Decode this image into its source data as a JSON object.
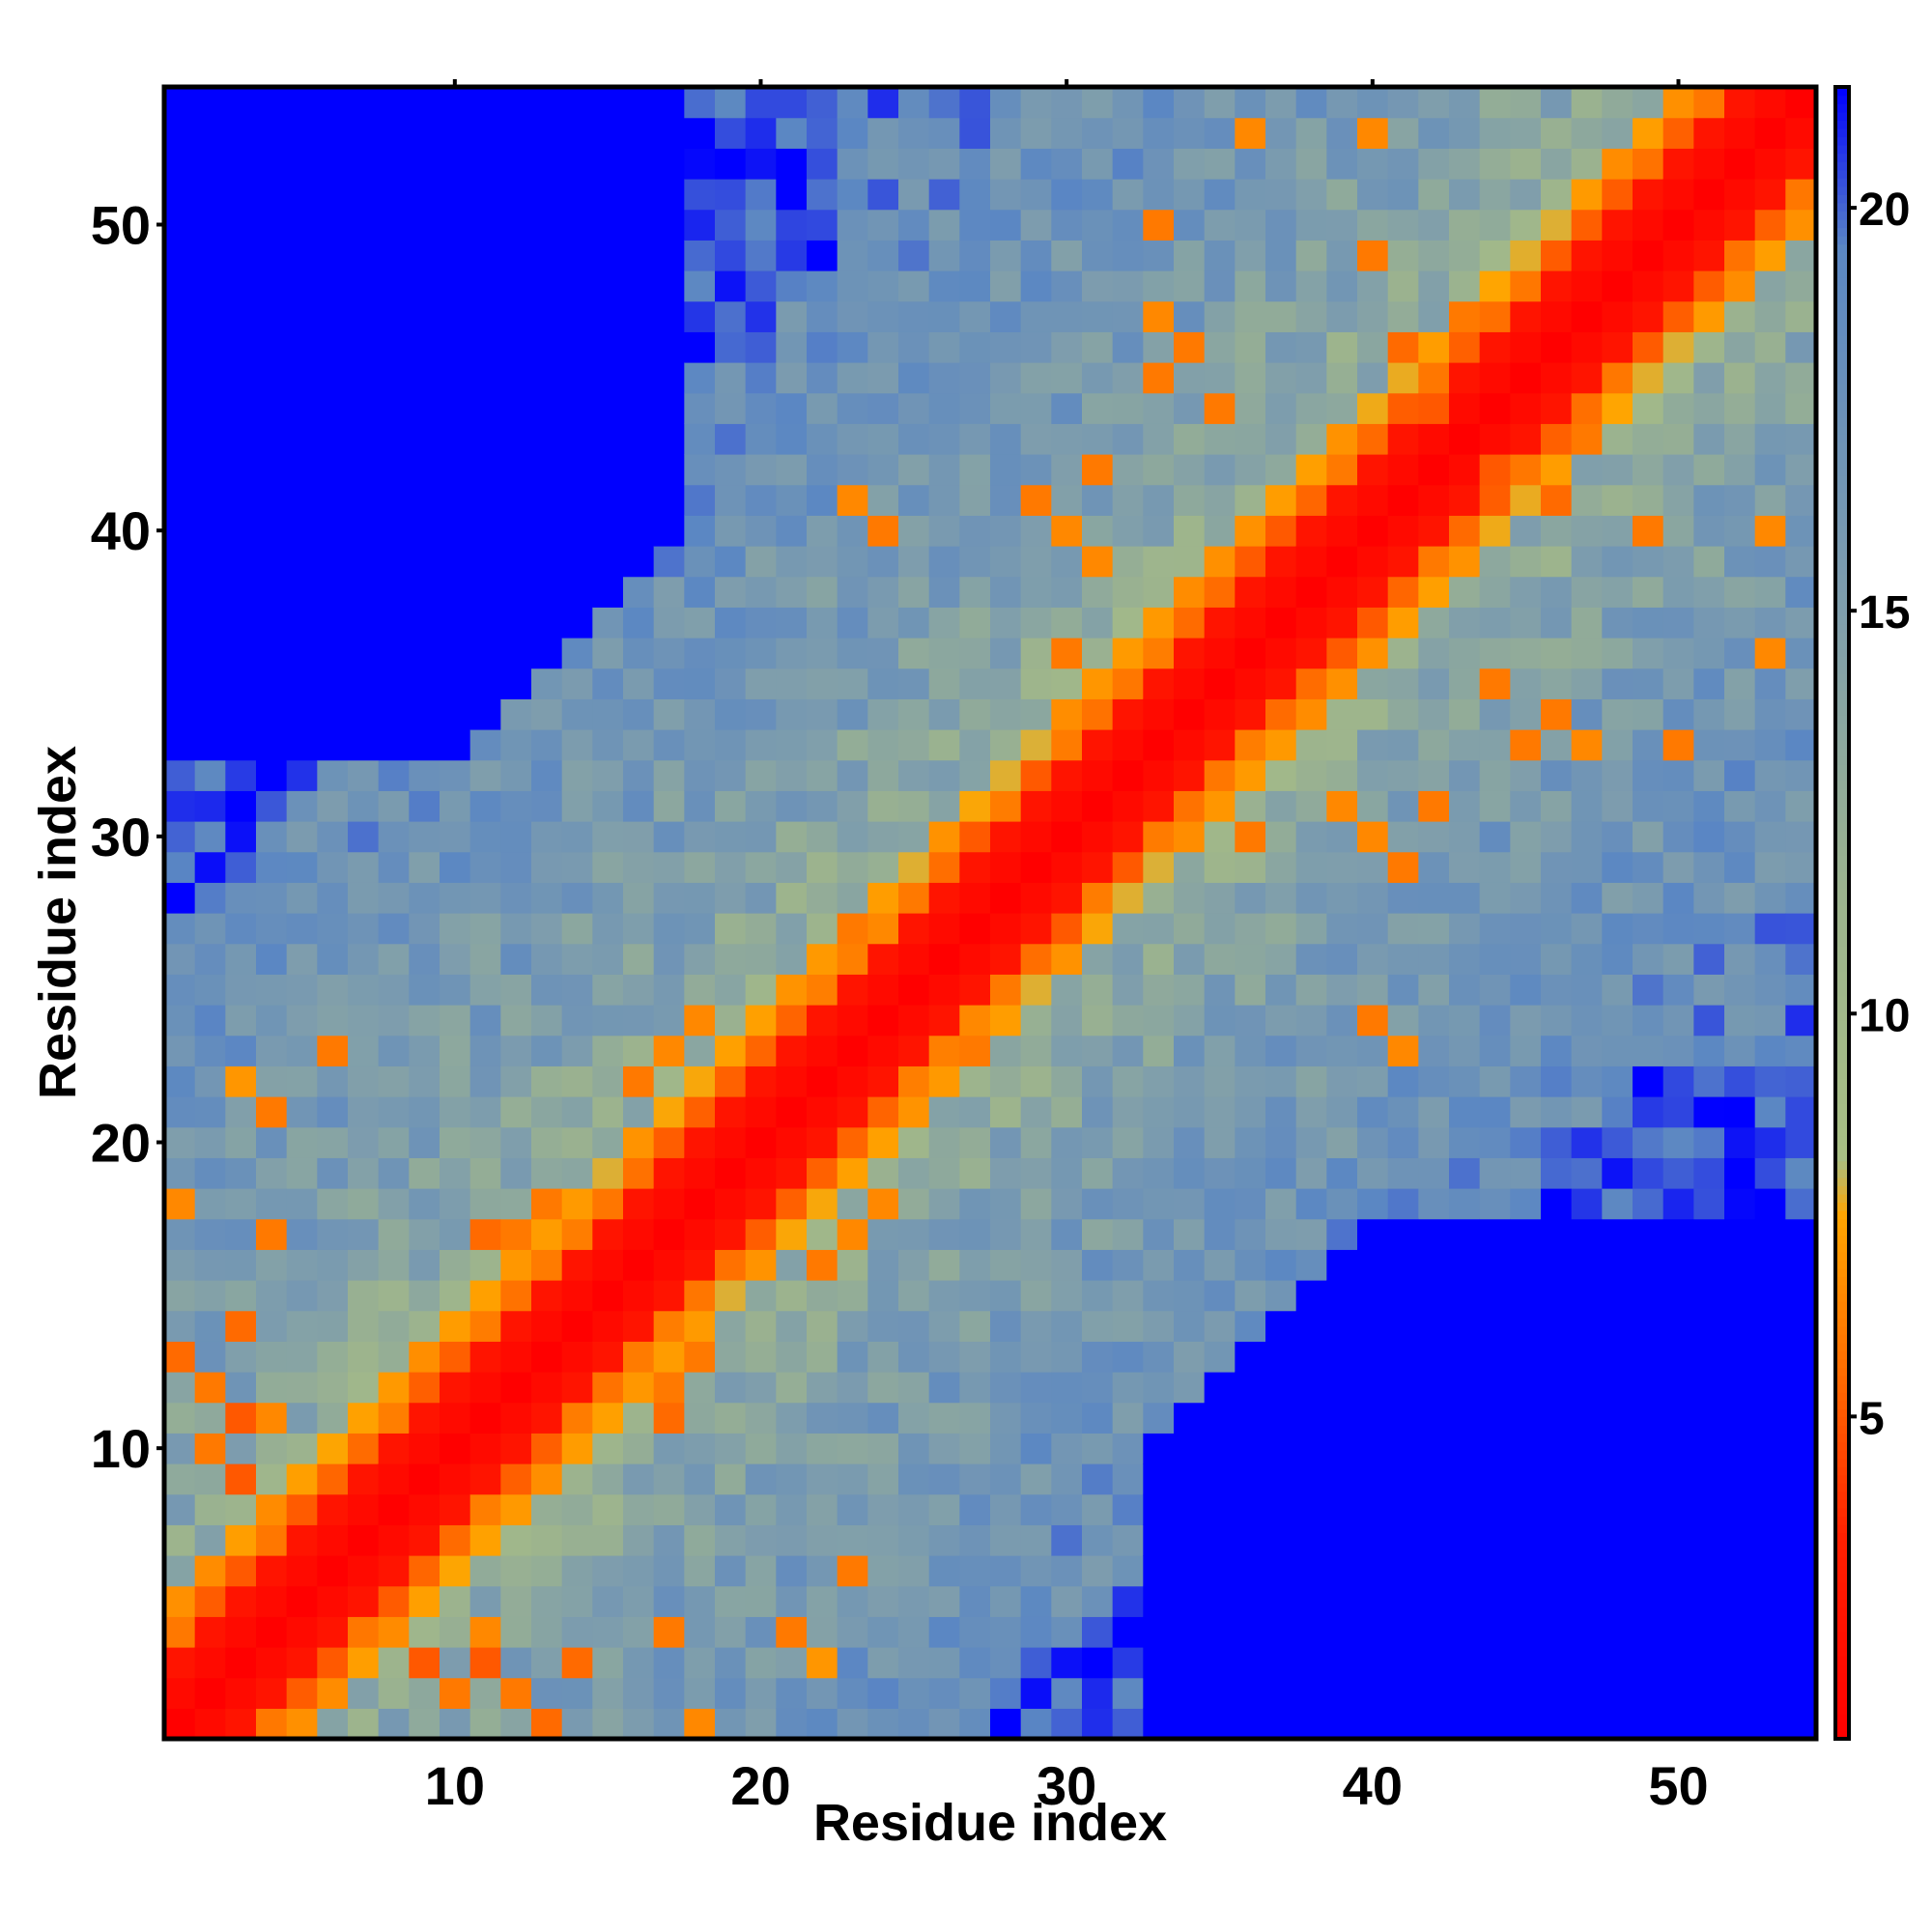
{
  "chart_data": {
    "type": "heatmap",
    "title": "",
    "xlabel": "Residue index",
    "ylabel": "Residue index",
    "n": 54,
    "xlim": [
      1,
      54
    ],
    "ylim": [
      1,
      54
    ],
    "x_ticks": [
      10,
      20,
      30,
      40,
      50
    ],
    "y_ticks": [
      10,
      20,
      30,
      40,
      50
    ],
    "x_tick_labels": [
      "10",
      "20",
      "30",
      "40",
      "50"
    ],
    "y_tick_labels": [
      "10",
      "20",
      "30",
      "40",
      "50"
    ],
    "colorbar": {
      "range": [
        1,
        21.5
      ],
      "ticks": [
        5,
        10,
        15,
        20
      ],
      "tick_labels": [
        "5",
        "10",
        "15",
        "20"
      ],
      "stops": [
        {
          "value": 1,
          "color": "#ff0000"
        },
        {
          "value": 3.5,
          "color": "#ff2000"
        },
        {
          "value": 5.5,
          "color": "#ff6a00"
        },
        {
          "value": 7.5,
          "color": "#ffa500"
        },
        {
          "value": 8.2,
          "color": "#a8bf84"
        },
        {
          "value": 11.5,
          "color": "#9cb38e"
        },
        {
          "value": 15,
          "color": "#7f9eac"
        },
        {
          "value": 19.5,
          "color": "#5b87c3"
        },
        {
          "value": 21.5,
          "color": "#0000ff"
        }
      ]
    },
    "cell_values_description": "Residue-residue distance map (symmetric). Values are distances; diagonal ~1, far pairs saturate near 21+.",
    "structure": {
      "diag_band": 2,
      "contacts": [
        {
          "i": 1,
          "j": 13,
          "v": 5.5
        },
        {
          "i": 2,
          "j": 12,
          "v": 6
        },
        {
          "i": 3,
          "j": 11,
          "v": 5
        },
        {
          "i": 4,
          "j": 11,
          "v": 6.5
        },
        {
          "i": 2,
          "j": 10,
          "v": 6
        },
        {
          "i": 3,
          "j": 9,
          "v": 5
        },
        {
          "i": 1,
          "j": 18,
          "v": 6.5
        },
        {
          "i": 4,
          "j": 17,
          "v": 6
        },
        {
          "i": 6,
          "j": 23,
          "v": 6
        },
        {
          "i": 3,
          "j": 14,
          "v": 5.5
        },
        {
          "i": 3,
          "j": 22,
          "v": 7
        },
        {
          "i": 4,
          "j": 21,
          "v": 6
        },
        {
          "i": 11,
          "j": 17,
          "v": 5.5
        },
        {
          "i": 12,
          "j": 17,
          "v": 6
        },
        {
          "i": 13,
          "j": 18,
          "v": 6
        },
        {
          "i": 16,
          "j": 22,
          "v": 6
        },
        {
          "i": 17,
          "j": 23,
          "v": 6.5
        },
        {
          "i": 18,
          "j": 24,
          "v": 6.5
        },
        {
          "i": 23,
          "j": 27,
          "v": 6
        },
        {
          "i": 24,
          "j": 27,
          "v": 6.5
        },
        {
          "i": 25,
          "j": 28,
          "v": 6
        },
        {
          "i": 24,
          "j": 40,
          "v": 6
        },
        {
          "i": 23,
          "j": 41,
          "v": 6.5
        },
        {
          "i": 29,
          "j": 41,
          "v": 6
        },
        {
          "i": 30,
          "j": 40,
          "v": 6.5
        },
        {
          "i": 31,
          "j": 39,
          "v": 6.5
        },
        {
          "i": 31,
          "j": 42,
          "v": 6
        },
        {
          "i": 30,
          "j": 36,
          "v": 6
        },
        {
          "i": 33,
          "j": 45,
          "v": 6
        },
        {
          "i": 35,
          "j": 44,
          "v": 6
        },
        {
          "i": 33,
          "j": 47,
          "v": 6.5
        },
        {
          "i": 34,
          "j": 46,
          "v": 6
        },
        {
          "i": 41,
          "j": 46,
          "v": 5.5
        },
        {
          "i": 43,
          "j": 47,
          "v": 6
        },
        {
          "i": 40,
          "j": 49,
          "v": 6
        },
        {
          "i": 40,
          "j": 53,
          "v": 6.5
        },
        {
          "i": 36,
          "j": 53,
          "v": 6.5
        },
        {
          "i": 33,
          "j": 50,
          "v": 6
        },
        {
          "i": 42,
          "j": 44,
          "v": 5
        }
      ]
    }
  }
}
